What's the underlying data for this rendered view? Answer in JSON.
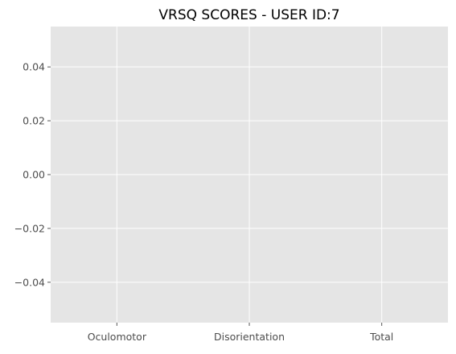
{
  "chart_data": {
    "type": "bar",
    "title": "VRSQ SCORES - USER ID:7",
    "xlabel": "",
    "ylabel": "",
    "categories": [
      "Oculomotor",
      "Disorientation",
      "Total"
    ],
    "values": [
      null,
      null,
      null
    ],
    "ylim": [
      -0.055,
      0.055
    ],
    "yticks": [
      -0.04,
      -0.02,
      0.0,
      0.02,
      0.04
    ],
    "ytick_labels": [
      "−0.04",
      "−0.02",
      "0.00",
      "0.02",
      "0.04"
    ],
    "grid": true,
    "style": "ggplot",
    "colors": {
      "plot_background": "#e5e5e5",
      "grid": "#ffffff",
      "tick_text": "#4d4d4d",
      "title_text": "#000000"
    }
  }
}
